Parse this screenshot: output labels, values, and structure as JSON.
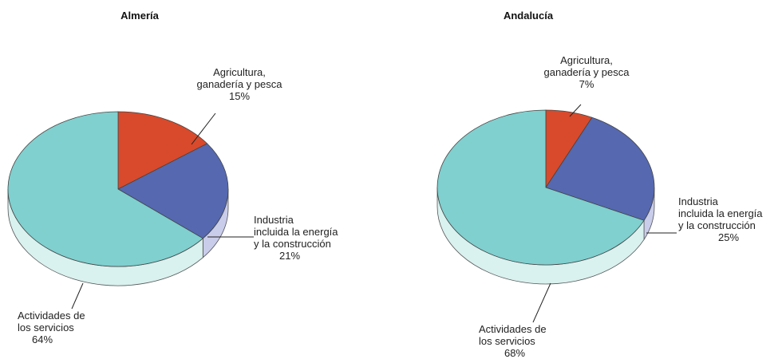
{
  "chart_data": [
    {
      "type": "pie",
      "title": "Almería",
      "categories": [
        "Agricultura,\nganadería y pesca",
        "Industria\nincluida la energía\ny la construcción",
        "Actividades de\nlos servicios"
      ],
      "values": [
        15,
        21,
        64
      ],
      "value_labels": [
        "15%",
        "21%",
        "64%"
      ],
      "colors": [
        "#d84a2b",
        "#5568b0",
        "#7fd0cf"
      ]
    },
    {
      "type": "pie",
      "title": "Andalucía",
      "categories": [
        "Agricultura,\nganadería y pesca",
        "Industria\nincluida la energía\ny la construcción",
        "Actividades de\nlos servicios"
      ],
      "values": [
        7,
        25,
        68
      ],
      "value_labels": [
        "7%",
        "25%",
        "68%"
      ],
      "colors": [
        "#d84a2b",
        "#5568b0",
        "#7fd0cf"
      ]
    }
  ]
}
